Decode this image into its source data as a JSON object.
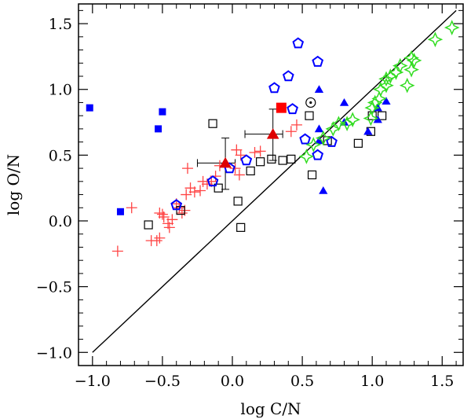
{
  "chart_data": {
    "type": "scatter",
    "title": "",
    "xlabel": "log C/N",
    "ylabel": "log O/N",
    "xlim": [
      -1.1,
      1.65
    ],
    "ylim": [
      -1.1,
      1.65
    ],
    "xticks": [
      -1.0,
      -0.5,
      0.0,
      0.5,
      1.0,
      1.5
    ],
    "xtick_labels": [
      "−1.0",
      "−0.5",
      "0.0",
      "0.5",
      "1.0",
      "1.5"
    ],
    "yticks": [
      -1.0,
      -0.5,
      0.0,
      0.5,
      1.0,
      1.5
    ],
    "ytick_labels": [
      "−1.0",
      "−0.5",
      "0.0",
      "0.5",
      "1.0",
      "1.5"
    ],
    "grid": false,
    "reference_line": {
      "x": [
        -1.0,
        1.6
      ],
      "y": [
        -1.0,
        1.6
      ]
    },
    "sun_marker": {
      "x": 0.56,
      "y": 0.9
    },
    "series": [
      {
        "name": "blue-filled-squares",
        "marker": "filled-square",
        "color": "#0000ff",
        "points": [
          [
            -1.02,
            0.86
          ],
          [
            -0.8,
            0.07
          ],
          [
            -0.5,
            0.83
          ],
          [
            -0.53,
            0.7
          ]
        ]
      },
      {
        "name": "red-filled-square",
        "marker": "filled-square-large",
        "color": "#ff0000",
        "points": [
          [
            0.35,
            0.86
          ]
        ]
      },
      {
        "name": "red-plus",
        "marker": "plus",
        "color": "#ff4444",
        "points": [
          [
            -0.82,
            -0.23
          ],
          [
            -0.72,
            0.1
          ],
          [
            -0.58,
            -0.15
          ],
          [
            -0.54,
            -0.15
          ],
          [
            -0.52,
            -0.13
          ],
          [
            -0.5,
            0.05
          ],
          [
            -0.52,
            0.06
          ],
          [
            -0.49,
            0.03
          ],
          [
            -0.46,
            -0.02
          ],
          [
            -0.45,
            -0.05
          ],
          [
            -0.43,
            0.01
          ],
          [
            -0.4,
            0.13
          ],
          [
            -0.38,
            0.1
          ],
          [
            -0.36,
            0.06
          ],
          [
            -0.34,
            0.08
          ],
          [
            -0.33,
            0.2
          ],
          [
            -0.32,
            0.4
          ],
          [
            -0.3,
            0.25
          ],
          [
            -0.27,
            0.22
          ],
          [
            -0.23,
            0.23
          ],
          [
            -0.21,
            0.3
          ],
          [
            -0.18,
            0.28
          ],
          [
            -0.15,
            0.3
          ],
          [
            -0.12,
            0.34
          ],
          [
            -0.09,
            0.42
          ],
          [
            0.02,
            0.4
          ],
          [
            0.03,
            0.54
          ],
          [
            0.06,
            0.5
          ],
          [
            0.05,
            0.35
          ],
          [
            0.16,
            0.52
          ],
          [
            0.2,
            0.53
          ],
          [
            0.42,
            0.68
          ],
          [
            0.46,
            0.73
          ]
        ]
      },
      {
        "name": "open-squares",
        "marker": "open-square",
        "color": "#000000",
        "points": [
          [
            -0.6,
            -0.03
          ],
          [
            -0.37,
            0.08
          ],
          [
            -0.14,
            0.74
          ],
          [
            -0.1,
            0.25
          ],
          [
            0.04,
            0.15
          ],
          [
            0.06,
            -0.05
          ],
          [
            0.13,
            0.38
          ],
          [
            0.2,
            0.45
          ],
          [
            0.28,
            0.47
          ],
          [
            0.36,
            0.46
          ],
          [
            0.42,
            0.47
          ],
          [
            0.55,
            0.8
          ],
          [
            0.57,
            0.35
          ],
          [
            0.68,
            0.61
          ],
          [
            0.9,
            0.59
          ],
          [
            0.99,
            0.68
          ],
          [
            1.0,
            0.8
          ],
          [
            1.07,
            0.8
          ]
        ]
      },
      {
        "name": "blue-open-pentagons",
        "marker": "open-pentagon",
        "color": "#0000ff",
        "points": [
          [
            -0.4,
            0.12
          ],
          [
            -0.14,
            0.3
          ],
          [
            -0.02,
            0.4
          ],
          [
            0.1,
            0.46
          ],
          [
            0.3,
            1.01
          ],
          [
            0.4,
            1.1
          ],
          [
            0.43,
            0.85
          ],
          [
            0.47,
            1.35
          ],
          [
            0.52,
            0.62
          ],
          [
            0.61,
            1.21
          ],
          [
            0.61,
            0.5
          ],
          [
            0.71,
            0.6
          ]
        ]
      },
      {
        "name": "blue-filled-triangles",
        "marker": "filled-triangle",
        "color": "#0000ff",
        "points": [
          [
            0.62,
            1.0
          ],
          [
            0.62,
            0.7
          ],
          [
            0.62,
            0.61
          ],
          [
            0.65,
            0.23
          ],
          [
            0.8,
            0.9
          ],
          [
            0.8,
            0.75
          ],
          [
            0.97,
            0.68
          ],
          [
            1.04,
            0.86
          ],
          [
            1.04,
            0.77
          ],
          [
            1.1,
            0.91
          ]
        ]
      },
      {
        "name": "red-filled-triangles",
        "marker": "filled-triangle-large",
        "color": "#dd0000",
        "points": [
          [
            -0.05,
            0.44
          ],
          [
            0.29,
            0.66
          ]
        ]
      },
      {
        "name": "green-open-stars",
        "marker": "open-star",
        "color": "#33dd22",
        "points": [
          [
            0.53,
            0.49
          ],
          [
            0.58,
            0.58
          ],
          [
            0.65,
            0.63
          ],
          [
            0.72,
            0.7
          ],
          [
            0.76,
            0.74
          ],
          [
            0.82,
            0.74
          ],
          [
            0.86,
            0.77
          ],
          [
            0.99,
            0.78
          ],
          [
            1.0,
            0.86
          ],
          [
            1.02,
            0.9
          ],
          [
            1.05,
            0.93
          ],
          [
            1.06,
            1.0
          ],
          [
            1.1,
            1.03
          ],
          [
            1.1,
            1.08
          ],
          [
            1.13,
            1.1
          ],
          [
            1.17,
            1.13
          ],
          [
            1.2,
            1.18
          ],
          [
            1.25,
            1.03
          ],
          [
            1.28,
            1.15
          ],
          [
            1.28,
            1.24
          ],
          [
            1.3,
            1.22
          ],
          [
            1.45,
            1.38
          ],
          [
            1.57,
            1.47
          ]
        ]
      }
    ],
    "error_bars": [
      {
        "x": -0.05,
        "y": 0.44,
        "xerr": [
          0.2,
          0.07
        ],
        "yerr": [
          0.2,
          0.19
        ]
      },
      {
        "x": 0.29,
        "y": 0.66,
        "xerr": [
          0.2,
          0.07
        ],
        "yerr": [
          0.2,
          0.19
        ]
      }
    ]
  }
}
